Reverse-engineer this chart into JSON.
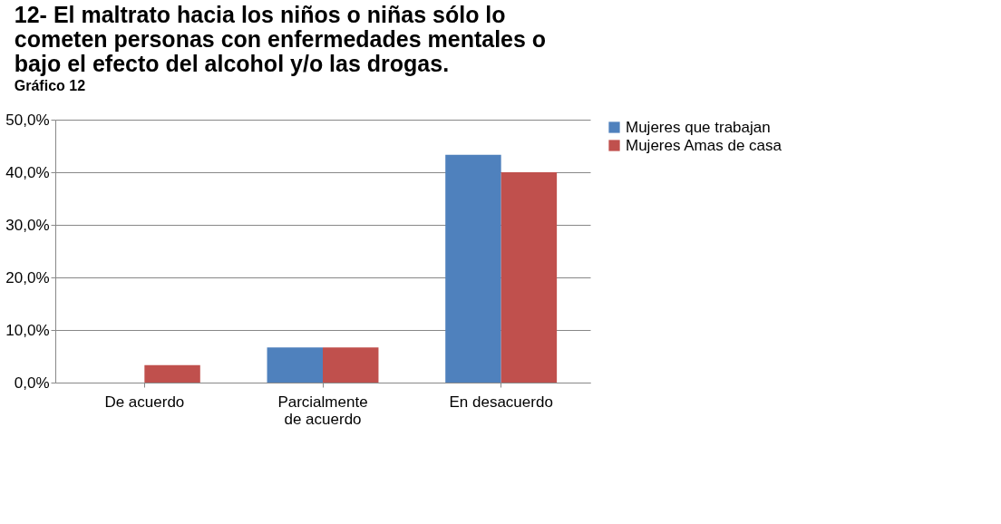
{
  "chart_data": {
    "type": "bar",
    "title": [
      "12- El maltrato hacia los niños o niñas sólo lo",
      "cometen personas con enfermedades mentales o",
      "bajo el efecto del alcohol y/o las drogas."
    ],
    "annotations": [
      "Gráfico 12"
    ],
    "categories": [
      "De acuerdo",
      "Parcialmente de acuerdo",
      "En desacuerdo"
    ],
    "series": [
      {
        "name": "Mujeres que trabajan",
        "color": "#4f81bd",
        "values": [
          0,
          6.7,
          43.3
        ]
      },
      {
        "name": "Mujeres Amas de casa",
        "color": "#c0504d",
        "values": [
          3.3,
          6.7,
          40.0
        ]
      }
    ],
    "ylim": [
      0,
      50
    ],
    "yticks": [
      {
        "value": 0,
        "label": "0,0%"
      },
      {
        "value": 10,
        "label": "10,0%"
      },
      {
        "value": 20,
        "label": "20,0%"
      },
      {
        "value": 30,
        "label": "30,0%"
      },
      {
        "value": 40,
        "label": "40,0%"
      },
      {
        "value": 50,
        "label": "50,0%"
      }
    ],
    "grid": "y",
    "legend": "right"
  }
}
